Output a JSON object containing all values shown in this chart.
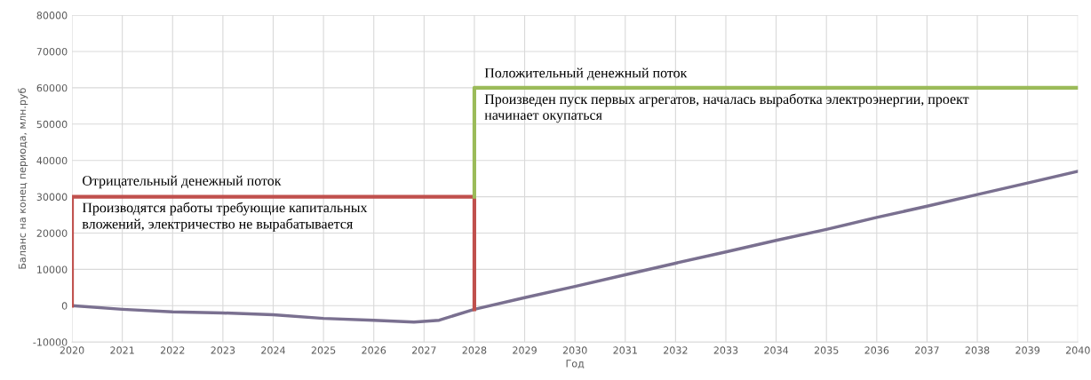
{
  "chart_data": {
    "type": "line",
    "xlabel": "Год",
    "ylabel": "Баланс на конец периода, млн.руб",
    "xlim": [
      2020,
      2040
    ],
    "ylim": [
      -10000,
      80000
    ],
    "xticks": [
      2020,
      2021,
      2022,
      2023,
      2024,
      2025,
      2026,
      2027,
      2028,
      2029,
      2030,
      2031,
      2032,
      2033,
      2034,
      2035,
      2036,
      2037,
      2038,
      2039,
      2040
    ],
    "yticks": [
      -10000,
      0,
      10000,
      20000,
      30000,
      40000,
      50000,
      60000,
      70000,
      80000
    ],
    "grid": true,
    "legend": false,
    "marker": "none",
    "line_style": "solid",
    "series": [
      {
        "color": "#7a7090",
        "x": [
          2020,
          2021,
          2022,
          2023,
          2024,
          2025,
          2026,
          2026.8,
          2027.3,
          2028,
          2029,
          2030,
          2031,
          2032,
          2033,
          2034,
          2035,
          2036,
          2037,
          2038,
          2039,
          2040
        ],
        "values": [
          0,
          -1000,
          -1700,
          -2000,
          -2500,
          -3500,
          -4000,
          -4500,
          -4000,
          -1000,
          2200,
          5300,
          8500,
          11700,
          14800,
          18000,
          21000,
          24300,
          27400,
          30600,
          33800,
          37000
        ]
      },
      {
        "color": "#c0504d",
        "x": [
          2020,
          2020,
          2028,
          2028
        ],
        "values": [
          0,
          30000,
          30000,
          -1000
        ]
      },
      {
        "color": "#9bbb59",
        "x": [
          2028,
          2028,
          2040
        ],
        "values": [
          30000,
          60000,
          60000
        ]
      }
    ],
    "annotations": [
      "Отрицательный денежный поток",
      "Производятся работы требующие капитальных\nвложений, электричество не вырабатывается",
      "Положительный денежный поток",
      "Произведен пуск первых агрегатов, началась выработка электроэнергии, проект\nначинает окупаться"
    ]
  }
}
